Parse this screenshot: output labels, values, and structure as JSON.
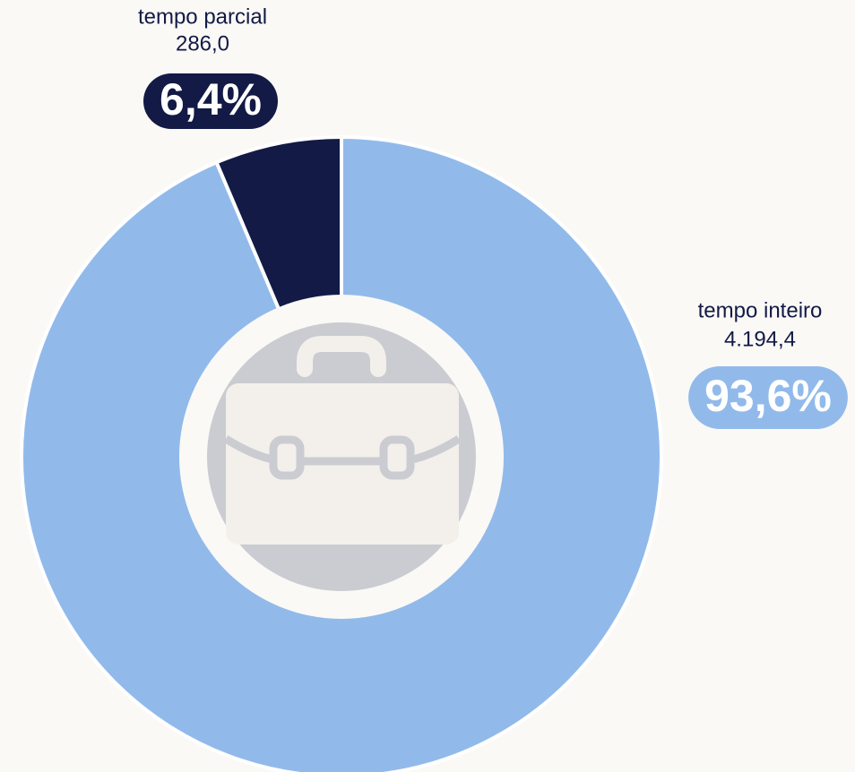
{
  "chart_data": {
    "type": "pie",
    "donut": true,
    "categories": [
      "tempo inteiro",
      "tempo parcial"
    ],
    "values": [
      4194.4,
      286.0
    ],
    "value_labels": [
      "4.194,4",
      "286,0"
    ],
    "shares": [
      93.6,
      6.4
    ],
    "share_labels": [
      "93,6%",
      "6,4%"
    ],
    "colors": [
      "#91baeb",
      "#121a45"
    ]
  }
}
